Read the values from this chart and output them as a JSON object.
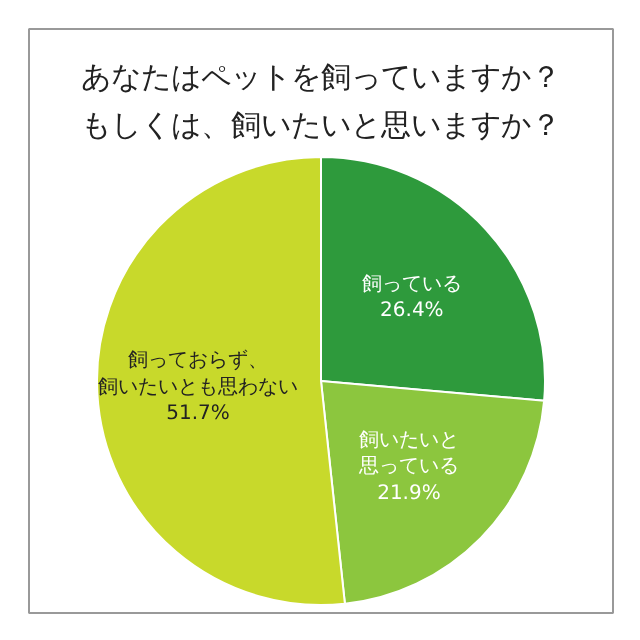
{
  "chart_data": {
    "type": "pie",
    "title": "あなたはペットを飼っていますか？もしくは、飼いたいと思いますか？",
    "categories": [
      "飼っている",
      "飼いたいと思っている",
      "飼っておらず、飼いたいとも思わない"
    ],
    "values": [
      26.4,
      21.9,
      51.7
    ],
    "colors": [
      "#2e9a3c",
      "#8cc63e",
      "#c8d92b"
    ],
    "value_labels": [
      "26.4%",
      "21.9%",
      "51.7%"
    ]
  }
}
